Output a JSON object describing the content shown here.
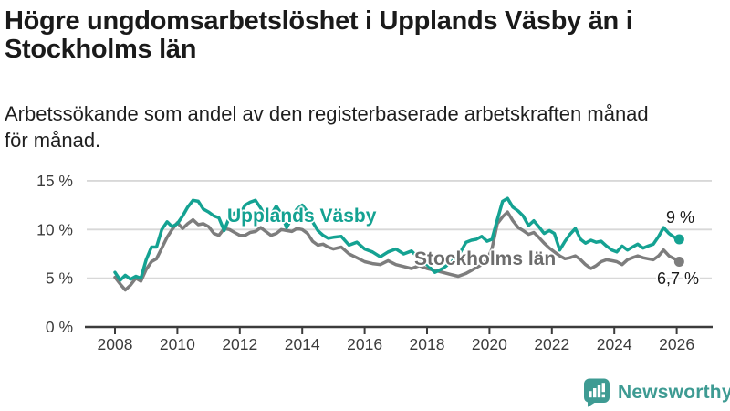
{
  "header": {
    "title_lines": [
      "Högre ungdomsarbetslöshet i Upplands Väsby än i",
      "Stockholms län"
    ],
    "subtitle_lines": [
      "Arbetssökande som andel av den registerbaserade arbetskraften månad",
      "för månad."
    ]
  },
  "footer": {
    "brand": "Newsworthy",
    "logo_icon": "bar-chart-speech-bubble-icon",
    "brand_color": "#3e9b93"
  },
  "chart_data": {
    "type": "line",
    "title": "Högre ungdomsarbetslöshet i Upplands Väsby än i Stockholms län",
    "subtitle": "Arbetssökande som andel av den registerbaserade arbetskraften månad för månad.",
    "x_unit": "year, monthly observations",
    "xlim": [
      2008,
      2026.3
    ],
    "ylim": [
      0,
      16
    ],
    "grid": "horizontal",
    "legend_position": "inline-labels",
    "x_ticks": [
      2008,
      2010,
      2012,
      2014,
      2016,
      2018,
      2020,
      2022,
      2024,
      2026
    ],
    "y_ticks": [
      {
        "value": 0,
        "label": "0 %"
      },
      {
        "value": 5,
        "label": "5 %"
      },
      {
        "value": 10,
        "label": "10 %"
      },
      {
        "value": 15,
        "label": "15 %"
      }
    ],
    "x": [
      2008.0,
      2008.17,
      2008.33,
      2008.5,
      2008.67,
      2008.83,
      2009.0,
      2009.17,
      2009.33,
      2009.5,
      2009.67,
      2009.83,
      2010.0,
      2010.17,
      2010.33,
      2010.5,
      2010.67,
      2010.83,
      2011.0,
      2011.17,
      2011.33,
      2011.5,
      2011.67,
      2011.83,
      2012.0,
      2012.17,
      2012.33,
      2012.5,
      2012.67,
      2012.83,
      2013.0,
      2013.17,
      2013.33,
      2013.5,
      2013.67,
      2013.83,
      2014.0,
      2014.17,
      2014.33,
      2014.5,
      2014.67,
      2014.83,
      2015.0,
      2015.25,
      2015.5,
      2015.75,
      2016.0,
      2016.25,
      2016.5,
      2016.75,
      2017.0,
      2017.25,
      2017.5,
      2017.75,
      2018.0,
      2018.25,
      2018.5,
      2018.75,
      2019.0,
      2019.25,
      2019.42,
      2019.58,
      2019.75,
      2019.92,
      2020.08,
      2020.25,
      2020.42,
      2020.58,
      2020.75,
      2020.92,
      2021.08,
      2021.25,
      2021.42,
      2021.58,
      2021.75,
      2021.92,
      2022.08,
      2022.25,
      2022.42,
      2022.58,
      2022.75,
      2022.92,
      2023.08,
      2023.25,
      2023.42,
      2023.58,
      2023.75,
      2023.92,
      2024.08,
      2024.25,
      2024.42,
      2024.58,
      2024.75,
      2024.92,
      2025.08,
      2025.25,
      2025.42,
      2025.58,
      2025.75,
      2025.92,
      2026.0,
      2026.08
    ],
    "series": [
      {
        "name": "Upplands Väsby",
        "color": "#14a292",
        "end_label": "9 %",
        "end_value": 9.0,
        "values": [
          5.6,
          4.8,
          5.3,
          4.9,
          5.2,
          5.0,
          6.9,
          8.2,
          8.2,
          10.0,
          10.8,
          10.3,
          10.6,
          11.4,
          12.3,
          13.0,
          12.9,
          12.1,
          11.8,
          11.4,
          11.2,
          9.9,
          11.3,
          11.7,
          11.5,
          12.5,
          12.8,
          13.0,
          12.2,
          11.2,
          11.5,
          12.4,
          11.6,
          10.2,
          11.2,
          12.1,
          12.5,
          11.8,
          10.8,
          9.9,
          9.4,
          9.1,
          9.2,
          9.3,
          8.4,
          8.7,
          8.0,
          7.7,
          7.2,
          7.7,
          8.0,
          7.5,
          7.8,
          7.0,
          6.4,
          5.6,
          6.0,
          6.6,
          7.3,
          8.7,
          8.9,
          9.0,
          9.3,
          8.8,
          9.0,
          11.0,
          12.9,
          13.2,
          12.3,
          11.9,
          11.4,
          10.4,
          10.9,
          10.3,
          9.6,
          9.9,
          9.6,
          7.9,
          8.8,
          9.5,
          10.1,
          9.0,
          8.6,
          8.9,
          8.7,
          8.8,
          8.3,
          7.9,
          7.7,
          8.3,
          7.9,
          8.2,
          8.5,
          8.1,
          8.3,
          8.5,
          9.3,
          10.2,
          9.6,
          9.2,
          9.1,
          9.0
        ]
      },
      {
        "name": "Stockholms län",
        "color": "#7d7d7d",
        "end_label": "6,7 %",
        "end_value": 6.7,
        "values": [
          5.1,
          4.4,
          3.8,
          4.3,
          5.0,
          4.7,
          5.9,
          6.7,
          7.0,
          8.1,
          9.2,
          10.0,
          10.7,
          10.1,
          10.6,
          11.0,
          10.5,
          10.6,
          10.3,
          9.6,
          9.4,
          10.1,
          10.0,
          9.7,
          9.4,
          9.4,
          9.7,
          9.8,
          10.2,
          9.8,
          9.4,
          9.6,
          10.0,
          9.9,
          9.8,
          10.1,
          10.0,
          9.6,
          8.8,
          8.4,
          8.5,
          8.2,
          8.0,
          8.2,
          7.5,
          7.1,
          6.7,
          6.5,
          6.4,
          6.8,
          6.4,
          6.2,
          6.0,
          6.3,
          6.0,
          5.8,
          5.6,
          5.4,
          5.2,
          5.5,
          5.8,
          6.1,
          6.4,
          6.9,
          8.0,
          10.6,
          11.3,
          11.8,
          10.9,
          10.2,
          9.9,
          9.5,
          9.7,
          9.2,
          8.6,
          8.1,
          7.7,
          7.3,
          7.0,
          7.1,
          7.3,
          6.9,
          6.4,
          6.0,
          6.3,
          6.7,
          6.9,
          6.8,
          6.7,
          6.4,
          6.9,
          7.1,
          7.3,
          7.1,
          7.0,
          6.9,
          7.3,
          7.9,
          7.3,
          7.0,
          6.9,
          6.7
        ]
      }
    ],
    "style": {
      "grid_color": "#d8d8d8",
      "axis_color": "#3c3c3c",
      "tick_label_color": "#3c3c3c"
    }
  }
}
